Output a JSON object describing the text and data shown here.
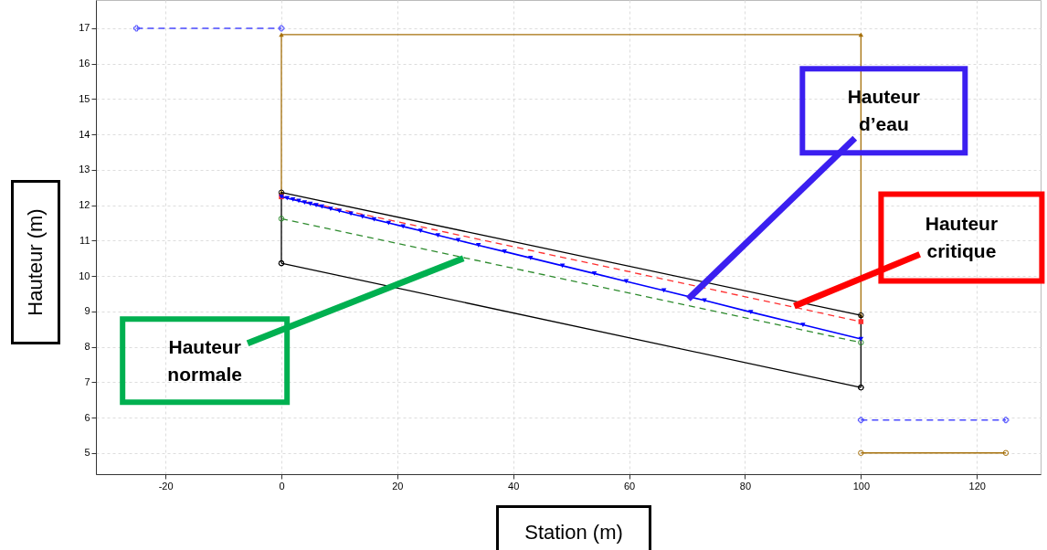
{
  "chart_data": {
    "type": "line",
    "xlabel": "Station (m)",
    "ylabel": "Hauteur (m)",
    "xlim": [
      -32,
      131
    ],
    "xticks": [
      -20,
      0,
      20,
      40,
      60,
      80,
      100,
      120
    ],
    "ylim": [
      4.4,
      17.8
    ],
    "yticks": [
      5,
      6,
      7,
      8,
      9,
      10,
      11,
      12,
      13,
      14,
      15,
      16,
      17
    ],
    "grid": true,
    "series": [
      {
        "color": "#a6700a",
        "x": [
          0,
          0,
          100,
          100
        ],
        "values": [
          12.36,
          16.82,
          16.82,
          8.89
        ],
        "marker": "triangle",
        "line_style": "solid"
      },
      {
        "color": "#000000",
        "x": [
          0,
          0,
          100,
          100
        ],
        "values": [
          10.36,
          12.36,
          8.89,
          6.85
        ],
        "marker": "circle",
        "line_style": "solid"
      },
      {
        "color": "#000000",
        "x": [
          0,
          100
        ],
        "values": [
          10.36,
          6.85
        ],
        "marker": "circle",
        "line_style": "solid"
      },
      {
        "color": "#ff3030",
        "x": [
          0,
          100
        ],
        "values": [
          12.24,
          8.71
        ],
        "marker": "square",
        "line_style": "dashed"
      },
      {
        "color": "#2e8b2e",
        "x": [
          0,
          100
        ],
        "values": [
          11.62,
          8.12
        ],
        "marker": "circle",
        "line_style": "dashed"
      },
      {
        "color": "#0000ff",
        "x": [
          0,
          1,
          2,
          3,
          4,
          5,
          6,
          7,
          8.5,
          10,
          12,
          14,
          16,
          18.5,
          21,
          24,
          27,
          30.5,
          34,
          38.5,
          43,
          48.5,
          54,
          59.5,
          66,
          73,
          81,
          90,
          100
        ],
        "values": [
          12.24,
          12.2,
          12.16,
          12.12,
          12.08,
          12.04,
          12.0,
          11.96,
          11.9,
          11.84,
          11.76,
          11.68,
          11.6,
          11.5,
          11.4,
          11.28,
          11.15,
          11.01,
          10.87,
          10.69,
          10.51,
          10.29,
          10.07,
          9.85,
          9.59,
          9.31,
          8.98,
          8.62,
          8.22
        ],
        "marker": "triangle",
        "line_style": "solid"
      },
      {
        "color": "#4a4aff",
        "x": [
          -25,
          0
        ],
        "values": [
          17,
          17
        ],
        "marker": "cross",
        "line_style": "dashed"
      },
      {
        "color": "#4a4aff",
        "x": [
          100,
          125
        ],
        "values": [
          5.93,
          5.93
        ],
        "marker": "cross",
        "line_style": "dashed"
      },
      {
        "color": "#a6700a",
        "x": [
          100,
          125
        ],
        "values": [
          5,
          5
        ],
        "marker": "circle",
        "line_style": "solid"
      }
    ],
    "annotations": [
      {
        "text": "Hauteur d’eau",
        "x": 70.2,
        "y": 9.35
      },
      {
        "text": "Hauteur critique",
        "x": 88.5,
        "y": 9.15
      },
      {
        "text": "Hauteur normale",
        "x": 31.4,
        "y": 10.5
      }
    ]
  }
}
